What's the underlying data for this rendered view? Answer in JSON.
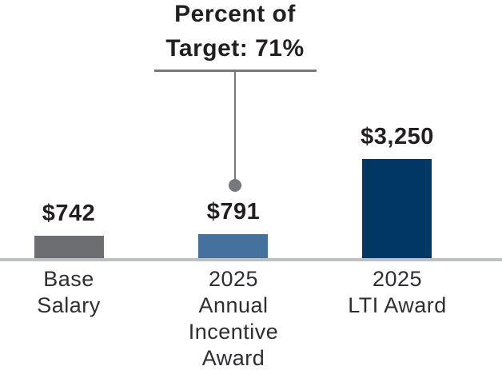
{
  "chart_data": {
    "type": "bar",
    "title": "",
    "categories": [
      "Base Salary",
      "2025 Annual Incentive Award",
      "2025 LTI Award"
    ],
    "category_display": [
      "Base\nSalary",
      "2025\nAnnual\nIncentive\nAward",
      "2025\nLTI Award"
    ],
    "values": [
      742,
      791,
      3250
    ],
    "value_labels": [
      "$742",
      "$791",
      "$3,250"
    ],
    "annotation": {
      "text": "Percent of\nTarget: 71%",
      "value": "71%",
      "points_to": "2025 Annual Incentive Award"
    },
    "bar_colors": [
      "#6D6E71",
      "#44719E",
      "#003764"
    ],
    "colors": {
      "value_text": "#231F20",
      "category_text": "#2E2D33",
      "annotation_text": "#231F20",
      "annotation_line": "#77787B",
      "axis_line": "#BDBFC1",
      "background": "#FFFFFF"
    },
    "layout": {
      "grid": false,
      "legend": "none",
      "baseline_visible": true,
      "value_labels_position": "above-bars"
    }
  }
}
